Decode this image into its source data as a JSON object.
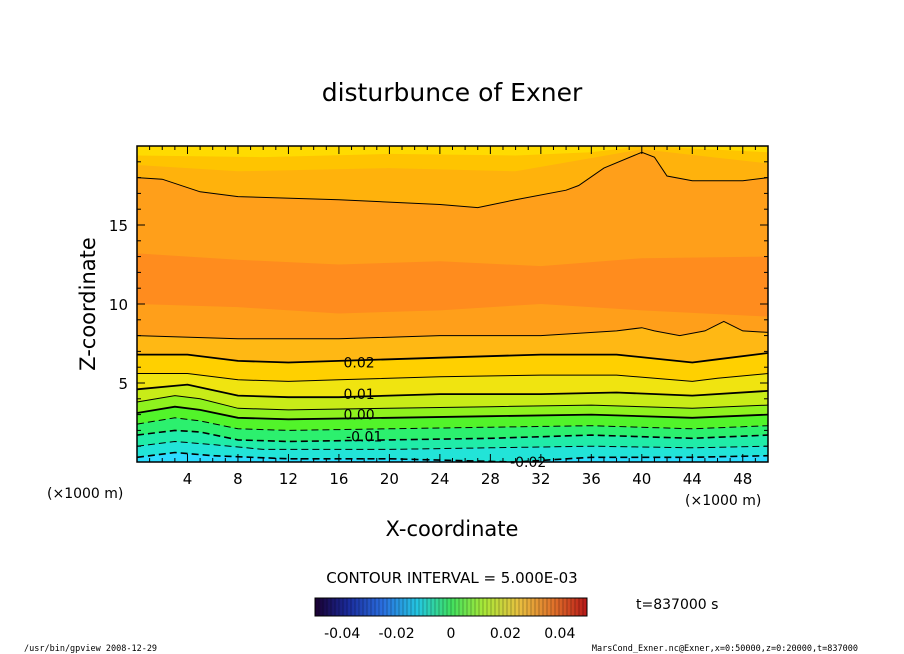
{
  "chart_data": {
    "type": "contour",
    "title": "disturbunce of Exner",
    "xlabel": "X-coordinate",
    "ylabel": "Z-coordinate",
    "x_unit": "(×1000 m)",
    "y_unit": "(×1000 m)",
    "xlim": [
      0,
      50
    ],
    "ylim": [
      0,
      20
    ],
    "x_ticks": [
      4,
      8,
      12,
      16,
      20,
      24,
      28,
      32,
      36,
      40,
      44,
      48
    ],
    "y_ticks": [
      5,
      10,
      15
    ],
    "contour_interval_text": "CONTOUR INTERVAL = 5.000E-03",
    "contour_labels": [
      {
        "text": "0.02",
        "x": 17.6,
        "z": 6.3
      },
      {
        "text": "0.01",
        "x": 17.6,
        "z": 4.3
      },
      {
        "text": "0.00",
        "x": 17.6,
        "z": 3.0
      },
      {
        "text": "-0.01",
        "x": 18.0,
        "z": 1.6
      },
      {
        "text": "-0.02",
        "x": 31.0,
        "z": 0.0
      }
    ],
    "contour_lines": [
      {
        "level": 0.025,
        "style": "solid",
        "width": 1.0,
        "points": [
          [
            0,
            8.0
          ],
          [
            8,
            7.8
          ],
          [
            16,
            7.8
          ],
          [
            24,
            8.0
          ],
          [
            32,
            8.0
          ],
          [
            38,
            8.3
          ],
          [
            40,
            8.5
          ],
          [
            41,
            8.3
          ],
          [
            43,
            8.0
          ],
          [
            45,
            8.3
          ],
          [
            46.5,
            8.9
          ],
          [
            48,
            8.3
          ],
          [
            50,
            8.2
          ]
        ]
      },
      {
        "level": 0.02,
        "style": "solid",
        "width": 1.8,
        "points": [
          [
            0,
            6.8
          ],
          [
            4,
            6.8
          ],
          [
            8,
            6.4
          ],
          [
            12,
            6.3
          ],
          [
            16,
            6.4
          ],
          [
            20,
            6.5
          ],
          [
            24,
            6.6
          ],
          [
            32,
            6.8
          ],
          [
            38,
            6.8
          ],
          [
            44,
            6.3
          ],
          [
            46,
            6.5
          ],
          [
            50,
            6.9
          ]
        ]
      },
      {
        "level": 0.015,
        "style": "solid",
        "width": 1.0,
        "points": [
          [
            0,
            5.6
          ],
          [
            4,
            5.6
          ],
          [
            8,
            5.2
          ],
          [
            12,
            5.1
          ],
          [
            16,
            5.2
          ],
          [
            24,
            5.4
          ],
          [
            32,
            5.5
          ],
          [
            38,
            5.5
          ],
          [
            44,
            5.1
          ],
          [
            46,
            5.3
          ],
          [
            50,
            5.6
          ]
        ]
      },
      {
        "level": 0.01,
        "style": "solid",
        "width": 1.8,
        "points": [
          [
            0,
            4.6
          ],
          [
            4,
            4.9
          ],
          [
            8,
            4.2
          ],
          [
            12,
            4.1
          ],
          [
            16,
            4.1
          ],
          [
            24,
            4.3
          ],
          [
            32,
            4.3
          ],
          [
            38,
            4.4
          ],
          [
            44,
            4.2
          ],
          [
            50,
            4.5
          ]
        ]
      },
      {
        "level": 0.005,
        "style": "solid",
        "width": 1.0,
        "points": [
          [
            0,
            3.8
          ],
          [
            3,
            4.2
          ],
          [
            5,
            4.0
          ],
          [
            8,
            3.4
          ],
          [
            12,
            3.3
          ],
          [
            20,
            3.4
          ],
          [
            28,
            3.5
          ],
          [
            36,
            3.6
          ],
          [
            44,
            3.4
          ],
          [
            50,
            3.6
          ]
        ]
      },
      {
        "level": 0.0,
        "style": "solid",
        "width": 1.8,
        "points": [
          [
            0,
            3.1
          ],
          [
            3,
            3.5
          ],
          [
            5,
            3.3
          ],
          [
            8,
            2.8
          ],
          [
            12,
            2.7
          ],
          [
            20,
            2.8
          ],
          [
            28,
            2.9
          ],
          [
            36,
            3.0
          ],
          [
            44,
            2.8
          ],
          [
            50,
            3.0
          ]
        ]
      },
      {
        "level": -0.005,
        "style": "dashed",
        "width": 1.0,
        "points": [
          [
            0,
            2.4
          ],
          [
            3,
            2.8
          ],
          [
            5,
            2.6
          ],
          [
            8,
            2.1
          ],
          [
            12,
            2.0
          ],
          [
            20,
            2.1
          ],
          [
            28,
            2.2
          ],
          [
            36,
            2.3
          ],
          [
            44,
            2.1
          ],
          [
            50,
            2.3
          ]
        ]
      },
      {
        "level": -0.01,
        "style": "dashed",
        "width": 1.6,
        "points": [
          [
            0,
            1.7
          ],
          [
            3,
            2.0
          ],
          [
            5,
            1.9
          ],
          [
            8,
            1.4
          ],
          [
            12,
            1.3
          ],
          [
            20,
            1.4
          ],
          [
            28,
            1.5
          ],
          [
            36,
            1.7
          ],
          [
            44,
            1.5
          ],
          [
            50,
            1.7
          ]
        ]
      },
      {
        "level": -0.015,
        "style": "dashed",
        "width": 1.0,
        "points": [
          [
            0,
            1.0
          ],
          [
            3,
            1.3
          ],
          [
            6,
            1.1
          ],
          [
            10,
            0.8
          ],
          [
            20,
            0.8
          ],
          [
            28,
            0.9
          ],
          [
            36,
            1.0
          ],
          [
            44,
            0.9
          ],
          [
            50,
            1.0
          ]
        ]
      },
      {
        "level": -0.02,
        "style": "dashed",
        "width": 1.6,
        "points": [
          [
            0,
            0.3
          ],
          [
            3,
            0.6
          ],
          [
            6,
            0.4
          ],
          [
            12,
            0.2
          ],
          [
            20,
            0.2
          ],
          [
            30,
            0.0
          ],
          [
            36,
            0.3
          ],
          [
            44,
            0.3
          ],
          [
            50,
            0.4
          ]
        ]
      },
      {
        "level": 0.03,
        "style": "solid",
        "width": 1.0,
        "points": [
          [
            0,
            18.0
          ],
          [
            2,
            17.9
          ],
          [
            5,
            17.1
          ],
          [
            8,
            16.8
          ],
          [
            16,
            16.6
          ],
          [
            24,
            16.3
          ],
          [
            27,
            16.1
          ],
          [
            30,
            16.6
          ],
          [
            34,
            17.2
          ],
          [
            35,
            17.5
          ],
          [
            37,
            18.6
          ],
          [
            40,
            19.6
          ],
          [
            41,
            19.3
          ],
          [
            42,
            18.1
          ],
          [
            44,
            17.8
          ],
          [
            48,
            17.8
          ],
          [
            50,
            18.0
          ]
        ]
      }
    ],
    "colorbar": {
      "tick_labels": [
        "-0.04",
        "-0.02",
        "0",
        "0.02",
        "0.04"
      ],
      "tick_values": [
        -0.04,
        -0.02,
        0,
        0.02,
        0.04
      ],
      "range": [
        -0.05,
        0.05
      ]
    },
    "time_text": "t=837000 s"
  },
  "footer": {
    "left": "/usr/bin/gpview   2008-12-29",
    "right": "MarsCond_Exner.nc@Exner,x=0:50000,z=0:20000,t=837000"
  },
  "colors": {
    "level_fills": [
      "#2ddcff",
      "#1ceca8",
      "#2cf06a",
      "#4cf52c",
      "#85f21e",
      "#b6ee1a",
      "#d9ea1a",
      "#f5e00e",
      "#ffc400",
      "#ffad14",
      "#ff9b1e",
      "#ff8a1e",
      "#ffd100",
      "#ffdb00",
      "#ffe600"
    ]
  }
}
